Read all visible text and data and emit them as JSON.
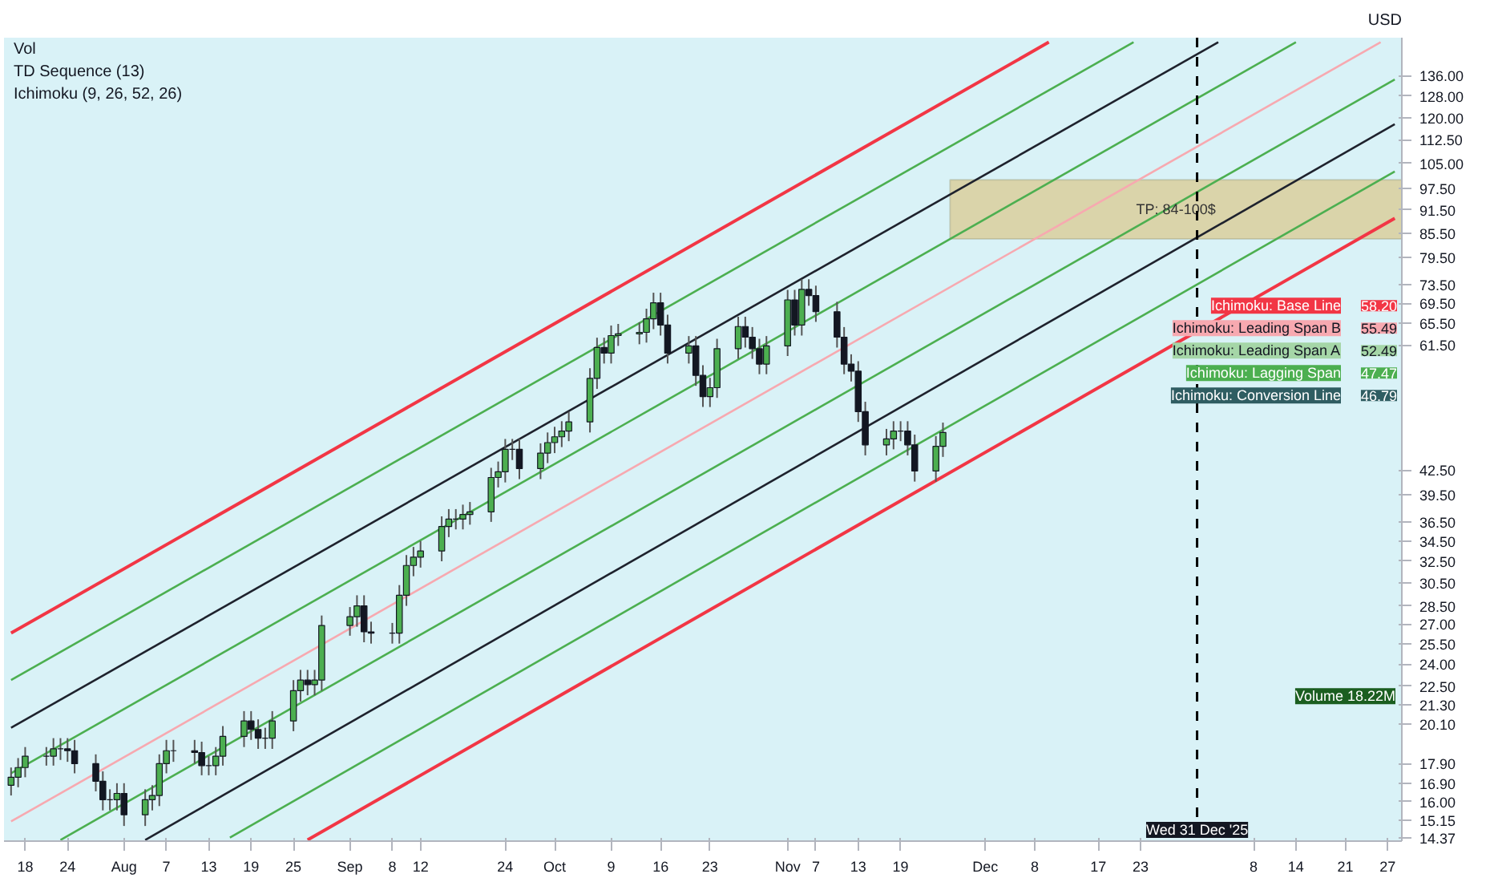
{
  "chart_data": {
    "type": "candlestick",
    "ylabel": "USD",
    "log": true,
    "x": [
      "2025-07-16",
      "2025-07-17",
      "2025-07-18",
      "2025-07-21",
      "2025-07-22",
      "2025-07-23",
      "2025-07-24",
      "2025-07-25",
      "2025-07-28",
      "2025-07-29",
      "2025-07-30",
      "2025-07-31",
      "2025-08-01",
      "2025-08-04",
      "2025-08-05",
      "2025-08-06",
      "2025-08-07",
      "2025-08-08",
      "2025-08-11",
      "2025-08-12",
      "2025-08-13",
      "2025-08-14",
      "2025-08-15",
      "2025-08-18",
      "2025-08-19",
      "2025-08-20",
      "2025-08-21",
      "2025-08-22",
      "2025-08-25",
      "2025-08-26",
      "2025-08-27",
      "2025-08-28",
      "2025-08-29",
      "2025-09-02",
      "2025-09-03",
      "2025-09-04",
      "2025-09-05",
      "2025-09-08",
      "2025-09-09",
      "2025-09-10",
      "2025-09-11",
      "2025-09-12",
      "2025-09-15",
      "2025-09-16",
      "2025-09-17",
      "2025-09-18",
      "2025-09-19",
      "2025-09-22",
      "2025-09-23",
      "2025-09-24",
      "2025-09-25",
      "2025-09-26",
      "2025-09-29",
      "2025-09-30",
      "2025-10-01",
      "2025-10-02",
      "2025-10-03",
      "2025-10-06",
      "2025-10-07",
      "2025-10-08",
      "2025-10-09",
      "2025-10-10",
      "2025-10-13",
      "2025-10-14",
      "2025-10-15",
      "2025-10-16",
      "2025-10-17",
      "2025-10-20",
      "2025-10-21",
      "2025-10-22",
      "2025-10-23",
      "2025-10-24",
      "2025-10-27",
      "2025-10-28",
      "2025-10-29",
      "2025-10-30",
      "2025-10-31",
      "2025-11-03",
      "2025-11-04",
      "2025-11-05",
      "2025-11-06",
      "2025-11-07",
      "2025-11-10",
      "2025-11-11",
      "2025-11-12",
      "2025-11-13",
      "2025-11-14",
      "2025-11-17",
      "2025-11-18",
      "2025-11-19",
      "2025-11-20",
      "2025-11-21",
      "2025-11-24",
      "2025-11-25"
    ],
    "ohlc": [
      [
        16.8,
        17.7,
        16.3,
        17.2
      ],
      [
        17.2,
        18.2,
        16.7,
        17.7
      ],
      [
        17.7,
        18.8,
        17.2,
        18.3
      ],
      [
        18.3,
        18.8,
        17.8,
        18.3
      ],
      [
        18.3,
        19.3,
        17.8,
        18.7
      ],
      [
        18.7,
        19.3,
        18.1,
        18.7
      ],
      [
        18.7,
        19.3,
        18.0,
        18.6
      ],
      [
        18.6,
        19.2,
        17.4,
        17.9
      ],
      [
        17.9,
        18.4,
        16.5,
        17.0
      ],
      [
        17.0,
        17.5,
        15.6,
        16.1
      ],
      [
        16.1,
        16.6,
        15.6,
        16.1
      ],
      [
        16.1,
        16.9,
        15.6,
        16.4
      ],
      [
        16.4,
        16.9,
        14.9,
        15.4
      ],
      [
        15.4,
        16.6,
        14.9,
        16.1
      ],
      [
        16.1,
        16.8,
        15.6,
        16.3
      ],
      [
        16.3,
        18.4,
        15.8,
        17.9
      ],
      [
        17.9,
        19.2,
        17.4,
        18.6
      ],
      [
        18.6,
        19.2,
        18.0,
        18.6
      ],
      [
        18.6,
        19.2,
        17.9,
        18.5
      ],
      [
        18.5,
        19.1,
        17.3,
        17.8
      ],
      [
        17.8,
        18.3,
        17.3,
        17.8
      ],
      [
        17.8,
        18.8,
        17.3,
        18.3
      ],
      [
        18.3,
        20.0,
        17.8,
        19.4
      ],
      [
        19.4,
        20.9,
        18.8,
        20.3
      ],
      [
        20.3,
        20.9,
        19.2,
        19.8
      ],
      [
        19.8,
        20.4,
        18.7,
        19.3
      ],
      [
        19.3,
        19.9,
        18.7,
        19.3
      ],
      [
        19.3,
        20.9,
        18.7,
        20.3
      ],
      [
        20.3,
        22.9,
        19.7,
        22.2
      ],
      [
        22.2,
        23.6,
        21.5,
        22.9
      ],
      [
        22.9,
        23.6,
        21.9,
        22.6
      ],
      [
        22.6,
        23.6,
        21.9,
        22.9
      ],
      [
        22.9,
        27.7,
        22.2,
        26.9
      ],
      [
        26.9,
        28.4,
        26.1,
        27.6
      ],
      [
        27.6,
        29.4,
        26.8,
        28.5
      ],
      [
        28.5,
        29.4,
        25.6,
        26.4
      ],
      [
        26.4,
        27.2,
        25.5,
        26.3
      ],
      [
        26.3,
        27.1,
        25.5,
        26.3
      ],
      [
        26.3,
        30.3,
        25.5,
        29.4
      ],
      [
        29.4,
        33.1,
        28.5,
        32.1
      ],
      [
        32.1,
        33.9,
        31.1,
        32.9
      ],
      [
        32.9,
        34.5,
        31.9,
        33.5
      ],
      [
        33.5,
        37.1,
        32.5,
        36.0
      ],
      [
        36.0,
        37.9,
        34.9,
        36.8
      ],
      [
        36.8,
        37.9,
        35.7,
        36.8
      ],
      [
        36.8,
        38.4,
        35.7,
        37.3
      ],
      [
        37.3,
        38.7,
        36.2,
        37.6
      ],
      [
        37.6,
        42.8,
        36.5,
        41.6
      ],
      [
        41.6,
        43.6,
        40.4,
        42.3
      ],
      [
        42.3,
        46.6,
        41.0,
        45.2
      ],
      [
        45.2,
        46.6,
        43.8,
        45.2
      ],
      [
        45.2,
        46.6,
        41.4,
        42.7
      ],
      [
        42.7,
        46.0,
        41.4,
        44.7
      ],
      [
        44.7,
        47.5,
        43.4,
        46.1
      ],
      [
        46.1,
        48.3,
        44.7,
        46.9
      ],
      [
        46.9,
        49.1,
        45.5,
        47.7
      ],
      [
        47.7,
        50.5,
        46.3,
        49.0
      ],
      [
        49.0,
        57.4,
        47.5,
        55.7
      ],
      [
        55.7,
        62.8,
        54.0,
        61.0
      ],
      [
        61.0,
        62.8,
        58.2,
        60.0
      ],
      [
        60.0,
        65.1,
        58.2,
        63.2
      ],
      [
        63.2,
        65.4,
        61.3,
        63.5
      ],
      [
        63.5,
        65.7,
        61.6,
        63.8
      ],
      [
        63.8,
        68.4,
        61.9,
        66.4
      ],
      [
        66.4,
        71.7,
        64.4,
        69.6
      ],
      [
        69.6,
        71.7,
        63.2,
        65.2
      ],
      [
        65.2,
        67.2,
        58.2,
        60.0
      ],
      [
        60.0,
        63.1,
        58.2,
        61.3
      ],
      [
        61.3,
        63.1,
        54.5,
        56.2
      ],
      [
        56.2,
        57.9,
        51.2,
        52.8
      ],
      [
        52.8,
        55.8,
        51.2,
        54.2
      ],
      [
        54.2,
        62.6,
        52.6,
        60.8
      ],
      [
        60.8,
        66.8,
        59.0,
        64.9
      ],
      [
        64.9,
        66.8,
        61.0,
        62.9
      ],
      [
        62.9,
        64.8,
        59.0,
        60.8
      ],
      [
        60.8,
        62.6,
        56.4,
        58.1
      ],
      [
        58.1,
        63.1,
        56.4,
        61.3
      ],
      [
        61.3,
        72.3,
        59.5,
        70.2
      ],
      [
        70.2,
        72.3,
        63.2,
        65.2
      ],
      [
        65.2,
        74.6,
        63.2,
        72.4
      ],
      [
        72.4,
        74.6,
        69.0,
        71.1
      ],
      [
        71.1,
        73.2,
        65.8,
        67.8
      ],
      [
        67.8,
        69.8,
        61.0,
        62.9
      ],
      [
        62.9,
        64.8,
        56.4,
        58.1
      ],
      [
        58.1,
        59.8,
        55.2,
        56.9
      ],
      [
        56.9,
        58.6,
        49.0,
        50.5
      ],
      [
        50.5,
        52.0,
        44.4,
        45.8
      ],
      [
        45.8,
        48.0,
        44.4,
        46.6
      ],
      [
        46.6,
        49.1,
        45.2,
        47.7
      ],
      [
        47.7,
        49.1,
        46.3,
        47.7
      ],
      [
        47.7,
        49.1,
        44.4,
        45.8
      ],
      [
        45.8,
        47.2,
        41.1,
        42.4
      ],
      [
        42.4,
        47.0,
        41.1,
        45.6
      ],
      [
        45.6,
        48.9,
        44.2,
        47.5
      ]
    ],
    "series": [
      {
        "type": "line",
        "color": "#f23645",
        "x": [
          "2025-07-16",
          "2025-12-10"
        ],
        "values": [
          26.3,
          150
        ]
      },
      {
        "type": "line",
        "color": "#4caf50",
        "x": [
          "2025-07-16",
          "2025-12-22"
        ],
        "values": [
          22.9,
          150
        ]
      },
      {
        "type": "line",
        "color": "#1e222d",
        "x": [
          "2025-07-16",
          "2026-01-03"
        ],
        "values": [
          19.9,
          150
        ]
      },
      {
        "type": "line",
        "color": "#4caf50",
        "x": [
          "2025-07-16",
          "2026-01-14"
        ],
        "values": [
          17.4,
          150
        ]
      },
      {
        "type": "line",
        "color": "#f7a9b0",
        "x": [
          "2025-07-16",
          "2026-01-26"
        ],
        "values": [
          15.1,
          150
        ]
      },
      {
        "type": "line",
        "color": "#4caf50",
        "x": [
          "2025-07-23",
          "2026-01-28"
        ],
        "values": [
          14.3,
          134.4
        ]
      },
      {
        "type": "line",
        "color": "#1e222d",
        "x": [
          "2025-08-04",
          "2026-01-28"
        ],
        "values": [
          14.3,
          117.8
        ]
      },
      {
        "type": "line",
        "color": "#4caf50",
        "x": [
          "2025-08-16",
          "2026-01-28"
        ],
        "values": [
          14.4,
          102.5
        ]
      },
      {
        "type": "line",
        "color": "#f23645",
        "x": [
          "2025-08-27",
          "2026-01-28"
        ],
        "values": [
          14.3,
          89.3
        ]
      }
    ],
    "xlim": [
      "2025-07-15",
      "2026-01-29"
    ],
    "xticks": [
      {
        "value": "2025-07-18",
        "label": "18"
      },
      {
        "value": "2025-07-24",
        "label": "24"
      },
      {
        "value": "2025-08-01",
        "label": "Aug"
      },
      {
        "value": "2025-08-07",
        "label": "7"
      },
      {
        "value": "2025-08-13",
        "label": "13"
      },
      {
        "value": "2025-08-19",
        "label": "19"
      },
      {
        "value": "2025-08-25",
        "label": "25"
      },
      {
        "value": "2025-09-02",
        "label": "Sep"
      },
      {
        "value": "2025-09-08",
        "label": "8"
      },
      {
        "value": "2025-09-12",
        "label": "12"
      },
      {
        "value": "2025-09-24",
        "label": "24"
      },
      {
        "value": "2025-10-01",
        "label": "Oct"
      },
      {
        "value": "2025-10-09",
        "label": "9"
      },
      {
        "value": "2025-10-16",
        "label": "16"
      },
      {
        "value": "2025-10-23",
        "label": "23"
      },
      {
        "value": "2025-11-03",
        "label": "Nov"
      },
      {
        "value": "2025-11-07",
        "label": "7"
      },
      {
        "value": "2025-11-13",
        "label": "13"
      },
      {
        "value": "2025-11-19",
        "label": "19"
      },
      {
        "value": "2025-12-01",
        "label": "Dec"
      },
      {
        "value": "2025-12-08",
        "label": "8"
      },
      {
        "value": "2025-12-17",
        "label": "17"
      },
      {
        "value": "2025-12-23",
        "label": "23"
      },
      {
        "value": "2026-01-08",
        "label": "8"
      },
      {
        "value": "2026-01-14",
        "label": "14"
      },
      {
        "value": "2026-01-21",
        "label": "21"
      },
      {
        "value": "2026-01-27",
        "label": "27"
      }
    ],
    "ylim": [
      14.25,
      152
    ],
    "yticks": [
      {
        "value": 136,
        "label": "136.00"
      },
      {
        "value": 128,
        "label": "128.00"
      },
      {
        "value": 120,
        "label": "120.00"
      },
      {
        "value": 112.5,
        "label": "112.50"
      },
      {
        "value": 105,
        "label": "105.00"
      },
      {
        "value": 97.5,
        "label": "97.50"
      },
      {
        "value": 91.5,
        "label": "91.50"
      },
      {
        "value": 85.5,
        "label": "85.50"
      },
      {
        "value": 79.5,
        "label": "79.50"
      },
      {
        "value": 73.5,
        "label": "73.50"
      },
      {
        "value": 69.5,
        "label": "69.50"
      },
      {
        "value": 65.5,
        "label": "65.50"
      },
      {
        "value": 61.5,
        "label": "61.50"
      },
      {
        "value": 42.5,
        "label": "42.50"
      },
      {
        "value": 39.5,
        "label": "39.50"
      },
      {
        "value": 36.5,
        "label": "36.50"
      },
      {
        "value": 34.5,
        "label": "34.50"
      },
      {
        "value": 32.5,
        "label": "32.50"
      },
      {
        "value": 30.5,
        "label": "30.50"
      },
      {
        "value": 28.5,
        "label": "28.50"
      },
      {
        "value": 27,
        "label": "27.00"
      },
      {
        "value": 25.5,
        "label": "25.50"
      },
      {
        "value": 24,
        "label": "24.00"
      },
      {
        "value": 22.5,
        "label": "22.50"
      },
      {
        "value": 21.3,
        "label": "21.30"
      },
      {
        "value": 20.1,
        "label": "20.10"
      },
      {
        "value": 17.9,
        "label": "17.90"
      },
      {
        "value": 16.9,
        "label": "16.90"
      },
      {
        "value": 16,
        "label": "16.00"
      },
      {
        "value": 15.15,
        "label": "15.15"
      },
      {
        "value": 14.37,
        "label": "14.37"
      }
    ],
    "bands": [
      {
        "axis": "y",
        "from": 84,
        "to": 100,
        "label": "TP: 84-100$",
        "color": "#d9cf9c"
      }
    ],
    "ref_lines": [
      {
        "axis": "x",
        "value": "2025-12-31",
        "label": "Wed 31 Dec '25",
        "color": "#000000",
        "line_style": "dashed"
      }
    ],
    "annotations": [
      "Vol",
      "TD Sequence (13)",
      "Ichimoku (9, 26, 52, 26)",
      "Volume 18.22M",
      "Ichimoku: Base Line",
      "58.20",
      "Ichimoku: Leading Span B",
      "55.49",
      "Ichimoku: Leading Span A",
      "52.49",
      "Ichimoku: Lagging Span",
      "47.47",
      "Ichimoku: Conversion Line",
      "46.79"
    ]
  }
}
